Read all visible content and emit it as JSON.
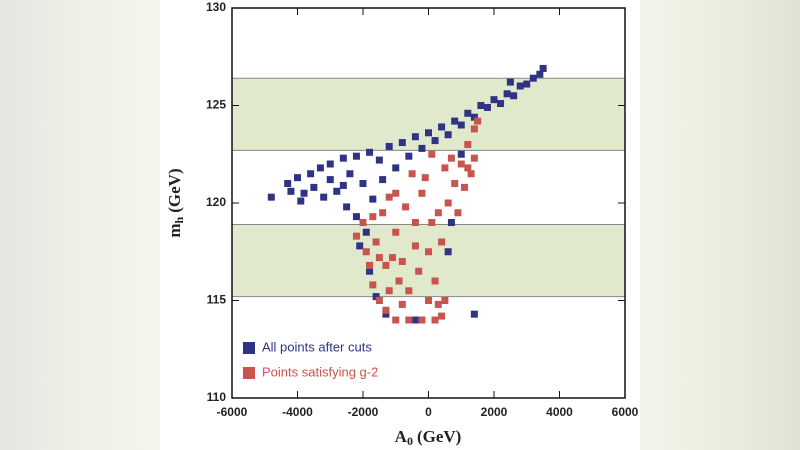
{
  "chart_data": {
    "type": "scatter",
    "x_label": {
      "main": "A",
      "sub": "0",
      "unit": "(GeV)"
    },
    "y_label": {
      "main": "m",
      "sub": "h",
      "unit": "(GeV)"
    },
    "xlim": [
      -6000,
      6000
    ],
    "ylim": [
      110,
      130
    ],
    "xticks": [
      -6000,
      -4000,
      -2000,
      0,
      2000,
      4000,
      6000
    ],
    "yticks": [
      110,
      115,
      120,
      125,
      130
    ],
    "bands": [
      [
        122.7,
        126.4
      ],
      [
        115.2,
        118.9
      ]
    ],
    "band_color": "#e0e9cb",
    "legend": "lower left",
    "series": [
      {
        "name": "All points after cuts",
        "color": "#2e3384",
        "x": [
          -4800,
          -4300,
          -4200,
          -4000,
          -3800,
          -3600,
          -3500,
          -3300,
          -3200,
          -3000,
          -3000,
          -2800,
          -2600,
          -2500,
          -2400,
          -2200,
          -2200,
          -2000,
          -1800,
          -1700,
          -1500,
          -1400,
          -1200,
          -1000,
          -800,
          -600,
          -400,
          -200,
          0,
          200,
          400,
          600,
          800,
          1000,
          1200,
          1400,
          1600,
          1800,
          2000,
          2200,
          2400,
          2600,
          2800,
          3000,
          3200,
          3400,
          3500,
          2500,
          -1900,
          -2100,
          -1800,
          -1600,
          -1300,
          -400,
          700,
          600,
          1000,
          1400,
          -2600,
          -3900
        ],
        "y": [
          120.3,
          121,
          120.6,
          121.3,
          120.5,
          121.5,
          120.8,
          121.8,
          120.3,
          121.2,
          122,
          120.6,
          122.3,
          119.8,
          121.5,
          122.4,
          119.3,
          121,
          122.6,
          120.2,
          122.2,
          121.2,
          122.9,
          121.8,
          123.1,
          122.4,
          123.4,
          122.8,
          123.6,
          123.2,
          123.9,
          123.5,
          124.2,
          124,
          124.6,
          124.4,
          125,
          124.9,
          125.3,
          125.1,
          125.6,
          125.5,
          126,
          126.1,
          126.4,
          126.6,
          126.9,
          126.2,
          118.5,
          117.8,
          116.5,
          115.2,
          114.3,
          114,
          119,
          117.5,
          122.5,
          114.3,
          120.9,
          120.1
        ]
      },
      {
        "name": "Points satisfying g-2",
        "color": "#c8544e",
        "x": [
          -2000,
          -2200,
          -1900,
          -1800,
          -1700,
          -1500,
          -1300,
          -1000,
          -600,
          -200,
          200,
          400,
          500,
          -1600,
          -1400,
          -1200,
          -1000,
          -800,
          -600,
          -400,
          -200,
          0,
          200,
          400,
          600,
          800,
          1000,
          1200,
          1400,
          1500,
          1300,
          700,
          500,
          300,
          -100,
          -300,
          -700,
          -900,
          -1100,
          -1300,
          -500,
          100,
          900,
          1100,
          -1500,
          -1200,
          -800,
          0,
          300,
          -1700,
          1400,
          1200,
          -400,
          100,
          -1000
        ],
        "y": [
          119,
          118.3,
          117.5,
          116.8,
          115.8,
          115,
          114.5,
          114,
          114,
          114,
          114,
          114.2,
          115,
          118,
          119.5,
          120.3,
          118.5,
          117,
          115.5,
          119,
          120.5,
          117.5,
          116,
          118,
          120,
          121,
          122,
          123,
          123.8,
          124.2,
          121.5,
          122.3,
          121.8,
          119.5,
          121.3,
          116.5,
          119.8,
          116,
          117.2,
          116.8,
          121.5,
          122.5,
          119.5,
          120.8,
          117.2,
          115.5,
          114.8,
          115,
          114.8,
          119.3,
          122.3,
          121.8,
          117.8,
          119,
          120.5
        ]
      }
    ]
  }
}
